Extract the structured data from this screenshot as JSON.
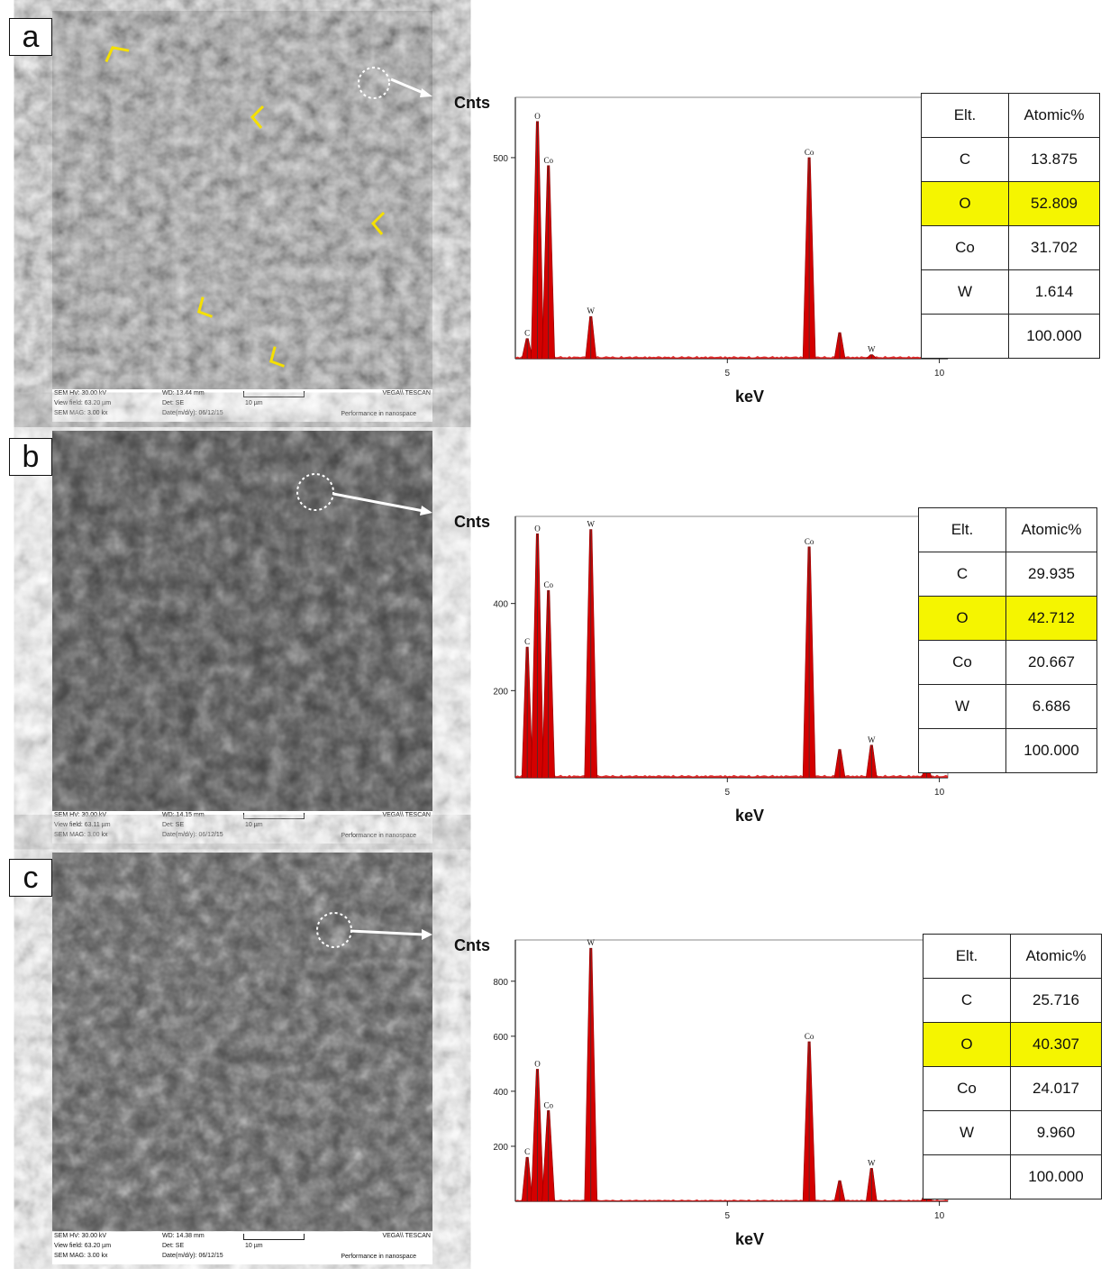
{
  "panels": [
    {
      "label": "a",
      "sem_info": {
        "hv": "SEM HV: 30.00 kV",
        "wd": "WD: 13.44 mm",
        "vendor": "VEGA\\\\ TESCAN",
        "view_field": "View field: 63.20 µm",
        "det": "Det: SE",
        "scale": "10 µm",
        "mag": "SEM MAG: 3.00 kx",
        "date": "Date(m/d/y): 06/12/15",
        "tagline": "Performance in nanospace"
      },
      "table": {
        "headers": [
          "Elt.",
          "Atomic%"
        ],
        "rows": [
          {
            "elt": "C",
            "val": "13.875",
            "highlight": false
          },
          {
            "elt": "O",
            "val": "52.809",
            "highlight": true
          },
          {
            "elt": "Co",
            "val": "31.702",
            "highlight": false
          },
          {
            "elt": "W",
            "val": "1.614",
            "highlight": false
          },
          {
            "elt": "",
            "val": "100.000",
            "highlight": false
          }
        ]
      }
    },
    {
      "label": "b",
      "sem_info": {
        "hv": "SEM HV: 30.00 kV",
        "wd": "WD: 14.15 mm",
        "vendor": "VEGA\\\\ TESCAN",
        "view_field": "View field: 63.11 µm",
        "det": "Det: SE",
        "scale": "10 µm",
        "mag": "SEM MAG: 3.00 kx",
        "date": "Date(m/d/y): 06/12/15",
        "tagline": "Performance in nanospace"
      },
      "table": {
        "headers": [
          "Elt.",
          "Atomic%"
        ],
        "rows": [
          {
            "elt": "C",
            "val": "29.935",
            "highlight": false
          },
          {
            "elt": "O",
            "val": "42.712",
            "highlight": true
          },
          {
            "elt": "Co",
            "val": "20.667",
            "highlight": false
          },
          {
            "elt": "W",
            "val": "6.686",
            "highlight": false
          },
          {
            "elt": "",
            "val": "100.000",
            "highlight": false
          }
        ]
      }
    },
    {
      "label": "c",
      "sem_info": {
        "hv": "SEM HV: 30.00 kV",
        "wd": "WD: 14.38 mm",
        "vendor": "VEGA\\\\ TESCAN",
        "view_field": "View field: 63.20 µm",
        "det": "Det: SE",
        "scale": "10 µm",
        "mag": "SEM MAG: 3.00 kx",
        "date": "Date(m/d/y): 06/12/15",
        "tagline": "Performance in nanospace"
      },
      "table": {
        "headers": [
          "Elt.",
          "Atomic%"
        ],
        "rows": [
          {
            "elt": "C",
            "val": "25.716",
            "highlight": false
          },
          {
            "elt": "O",
            "val": "40.307",
            "highlight": true
          },
          {
            "elt": "Co",
            "val": "24.017",
            "highlight": false
          },
          {
            "elt": "W",
            "val": "9.960",
            "highlight": false
          },
          {
            "elt": "",
            "val": "100.000",
            "highlight": false
          }
        ]
      }
    }
  ],
  "colors": {
    "spectrum": "#d40000",
    "highlight": "#f5f500",
    "arrow_marker": "#f5e000"
  },
  "chart_data": [
    {
      "type": "line",
      "ylabel": "Cnts",
      "xlabel": "keV",
      "xlim": [
        0,
        10.2
      ],
      "ylim": [
        0,
        650
      ],
      "x_ticks": [
        5,
        10
      ],
      "y_ticks": [
        500
      ],
      "peaks": [
        {
          "label": "C",
          "x": 0.28,
          "y": 50
        },
        {
          "label": "O",
          "x": 0.52,
          "y": 590
        },
        {
          "label": "Co",
          "x": 0.78,
          "y": 480
        },
        {
          "label": "W",
          "x": 1.78,
          "y": 105
        },
        {
          "label": "Co",
          "x": 6.93,
          "y": 500
        },
        {
          "label": "",
          "x": 7.65,
          "y": 65
        },
        {
          "label": "W",
          "x": 8.4,
          "y": 10
        }
      ]
    },
    {
      "type": "line",
      "ylabel": "Cnts",
      "xlabel": "keV",
      "xlim": [
        0,
        10.2
      ],
      "ylim": [
        0,
        600
      ],
      "x_ticks": [
        5,
        10
      ],
      "y_ticks": [
        200,
        400
      ],
      "peaks": [
        {
          "label": "C",
          "x": 0.28,
          "y": 300
        },
        {
          "label": "O",
          "x": 0.52,
          "y": 560
        },
        {
          "label": "Co",
          "x": 0.78,
          "y": 430
        },
        {
          "label": "W",
          "x": 1.78,
          "y": 570
        },
        {
          "label": "Co",
          "x": 6.93,
          "y": 530
        },
        {
          "label": "",
          "x": 7.65,
          "y": 65
        },
        {
          "label": "W",
          "x": 8.4,
          "y": 75
        },
        {
          "label": "",
          "x": 9.7,
          "y": 25
        }
      ]
    },
    {
      "type": "line",
      "ylabel": "Cnts",
      "xlabel": "keV",
      "xlim": [
        0,
        10.2
      ],
      "ylim": [
        0,
        950
      ],
      "x_ticks": [
        5,
        10
      ],
      "y_ticks": [
        200,
        400,
        600,
        800
      ],
      "peaks": [
        {
          "label": "C",
          "x": 0.28,
          "y": 160
        },
        {
          "label": "O",
          "x": 0.52,
          "y": 480
        },
        {
          "label": "Co",
          "x": 0.78,
          "y": 330
        },
        {
          "label": "W",
          "x": 1.78,
          "y": 920
        },
        {
          "label": "Co",
          "x": 6.93,
          "y": 580
        },
        {
          "label": "",
          "x": 7.65,
          "y": 75
        },
        {
          "label": "W",
          "x": 8.4,
          "y": 120
        },
        {
          "label": "",
          "x": 9.7,
          "y": 40
        }
      ]
    }
  ]
}
